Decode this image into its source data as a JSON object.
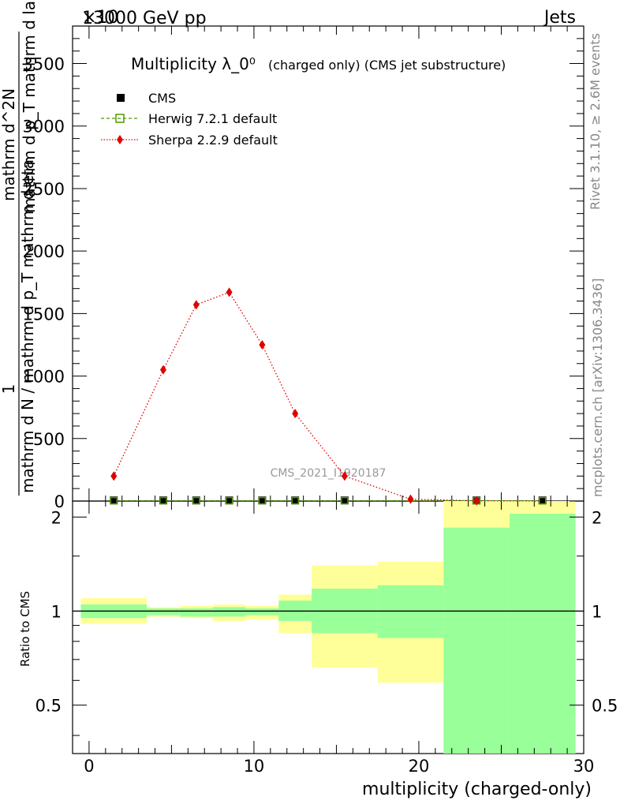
{
  "header": {
    "left": "13000 GeV pp",
    "right": "Jets",
    "exponent": "×10"
  },
  "side": {
    "top": "Rivet 3.1.10, ≥ 2.6M events",
    "bottom": "mcplots.cern.ch [arXiv:1306.3436]"
  },
  "chart_data": {
    "type": "line",
    "title": "Multiplicity λ_0⁰",
    "subtitle": "(charged only) (CMS jet substructure)",
    "watermark": "CMS_2021_I1920187",
    "ylabel_num": "1",
    "ylabel_den": "mathrm d N / mathrm d p_T mathrm d eta",
    "ylabel_num2": "mathrm d^2N",
    "ylabel_den2": "mathrm d p_T mathrm d lambda",
    "xlabel": "multiplicity (charged-only)",
    "ylim": [
      0,
      3800
    ],
    "xlim": [
      -1,
      30
    ],
    "yticks": [
      0,
      500,
      1000,
      1500,
      2000,
      2500,
      3000,
      3500
    ],
    "ytick_labels": [
      "0",
      "500",
      "1000",
      "1500",
      "2000",
      "2500",
      "3000",
      "3500"
    ],
    "xticks": [
      0,
      10,
      20,
      30
    ],
    "xtick_labels": [
      "0",
      "10",
      "20",
      "30"
    ],
    "legend": [
      {
        "name": "CMS",
        "color": "#000000",
        "marker": "square"
      },
      {
        "name": "Herwig 7.2.1 default",
        "color": "#4f9a00",
        "marker": "open-square"
      },
      {
        "name": "Sherpa 2.2.9 default",
        "color": "#e00000",
        "marker": "diamond"
      }
    ],
    "series": [
      {
        "name": "Sherpa 2.2.9 default",
        "x": [
          1.5,
          4.5,
          6.5,
          8.5,
          10.5,
          12.5,
          15.5,
          19.5,
          23.5,
          27.5
        ],
        "y": [
          200,
          1050,
          1570,
          1670,
          1250,
          700,
          200,
          15,
          2,
          0
        ]
      },
      {
        "name": "CMS",
        "x": [
          1.5,
          4.5,
          6.5,
          8.5,
          10.5,
          12.5,
          15.5,
          23.5,
          27.5
        ],
        "y": [
          5,
          5,
          5,
          5,
          5,
          5,
          5,
          5,
          5
        ]
      }
    ],
    "ratio": {
      "ylabel": "Ratio to CMS",
      "ylim": [
        0.35,
        2.25
      ],
      "yticks": [
        0.5,
        1,
        2
      ],
      "ytick_labels": [
        "0.5",
        "1",
        "2"
      ],
      "bands": [
        {
          "x0": -0.5,
          "x1": 3.5,
          "green_lo": 0.95,
          "green_hi": 1.05,
          "yellow_lo": 0.91,
          "yellow_hi": 1.1
        },
        {
          "x0": 3.5,
          "x1": 5.5,
          "green_lo": 0.97,
          "green_hi": 1.02,
          "yellow_lo": 0.96,
          "yellow_hi": 1.03
        },
        {
          "x0": 5.5,
          "x1": 7.5,
          "green_lo": 0.96,
          "green_hi": 1.02,
          "yellow_lo": 0.95,
          "yellow_hi": 1.04
        },
        {
          "x0": 7.5,
          "x1": 9.5,
          "green_lo": 0.96,
          "green_hi": 1.03,
          "yellow_lo": 0.93,
          "yellow_hi": 1.05
        },
        {
          "x0": 9.5,
          "x1": 11.5,
          "green_lo": 0.97,
          "green_hi": 1.02,
          "yellow_lo": 0.94,
          "yellow_hi": 1.04
        },
        {
          "x0": 11.5,
          "x1": 13.5,
          "green_lo": 0.93,
          "green_hi": 1.08,
          "yellow_lo": 0.85,
          "yellow_hi": 1.13
        },
        {
          "x0": 13.5,
          "x1": 17.5,
          "green_lo": 0.85,
          "green_hi": 1.18,
          "yellow_lo": 0.66,
          "yellow_hi": 1.4
        },
        {
          "x0": 17.5,
          "x1": 21.5,
          "green_lo": 0.82,
          "green_hi": 1.21,
          "yellow_lo": 0.59,
          "yellow_hi": 1.44
        },
        {
          "x0": 21.5,
          "x1": 25.5,
          "green_lo": 0.35,
          "green_hi": 1.85,
          "yellow_lo": 0.35,
          "yellow_hi": 2.25
        },
        {
          "x0": 25.5,
          "x1": 29.5,
          "green_lo": 0.35,
          "green_hi": 2.05,
          "yellow_lo": 0.35,
          "yellow_hi": 2.25
        }
      ]
    }
  }
}
